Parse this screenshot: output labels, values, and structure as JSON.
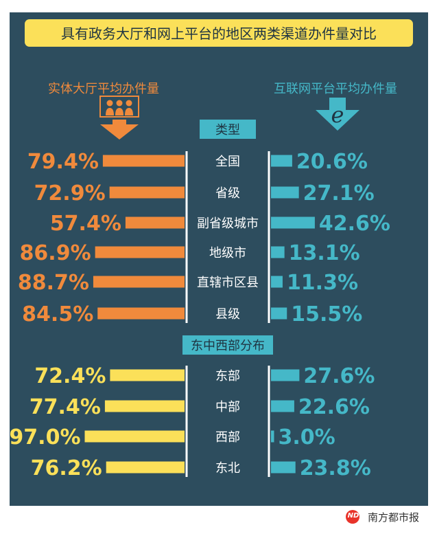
{
  "chart_data": {
    "type": "bar",
    "title": "具有政务大厅和网上平台的地区两类渠道办件量对比",
    "left_heading": "实体大厅平均办件量",
    "right_heading": "互联网平台平均办件量",
    "unit": "%",
    "groups": [
      {
        "label": "类型",
        "categories": [
          "全国",
          "省级",
          "副省级城市",
          "地级市",
          "直辖市区县",
          "县级"
        ],
        "hall": [
          79.4,
          72.9,
          57.4,
          86.9,
          88.7,
          84.5
        ],
        "online": [
          20.6,
          27.1,
          42.6,
          13.1,
          11.3,
          15.5
        ],
        "hall_color": "#f08a3c"
      },
      {
        "label": "东中西部分布",
        "categories": [
          "东部",
          "中部",
          "西部",
          "东北"
        ],
        "hall": [
          72.4,
          77.4,
          97.0,
          76.2
        ],
        "online": [
          27.6,
          22.6,
          3.0,
          23.8
        ],
        "hall_color": "#fbe059"
      }
    ],
    "colors": {
      "background": "#2d4d5e",
      "title_bg": "#fbe059",
      "online": "#45b8c8",
      "hall_heading": "#f08a3c",
      "online_heading": "#45b8c8",
      "category_text": "#ffffff",
      "group_label_bg": "#45b8c8"
    }
  },
  "icons": {
    "hall": "people-group-icon",
    "online": "e-internet-icon",
    "arrow": "down-arrow-icon"
  },
  "footer": {
    "logo_text": "ND",
    "brand": "南方都市报"
  }
}
